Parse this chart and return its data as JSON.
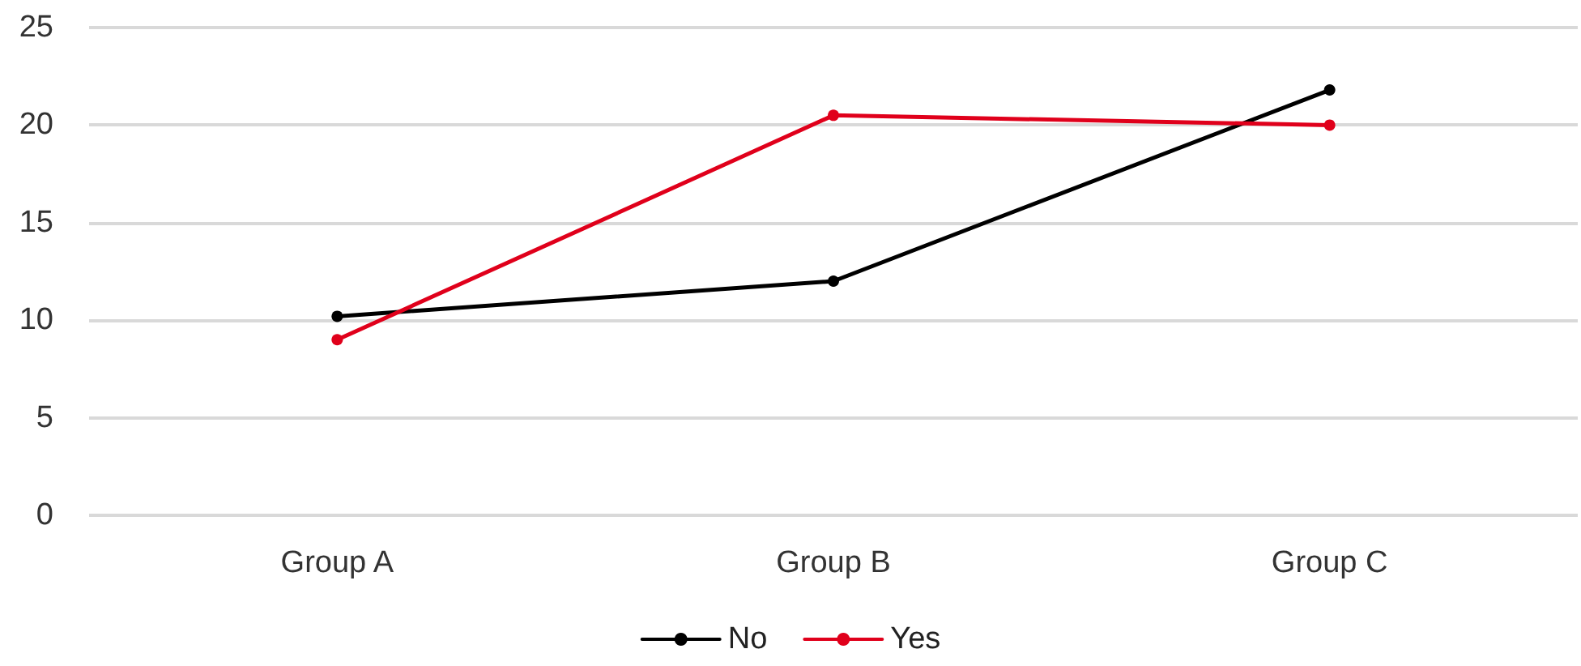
{
  "chart_data": {
    "type": "line",
    "categories": [
      "Group A",
      "Group B",
      "Group C"
    ],
    "series": [
      {
        "name": "No",
        "color": "#000000",
        "values": [
          10.2,
          12.0,
          21.8
        ]
      },
      {
        "name": "Yes",
        "color": "#e0001b",
        "values": [
          9.0,
          20.5,
          20.0
        ]
      }
    ],
    "ylim": [
      0,
      25
    ],
    "yticks": [
      0,
      5,
      10,
      15,
      20,
      25
    ],
    "grid": "y",
    "legend": "bottom",
    "marker": "circle",
    "line_style": "solid"
  }
}
